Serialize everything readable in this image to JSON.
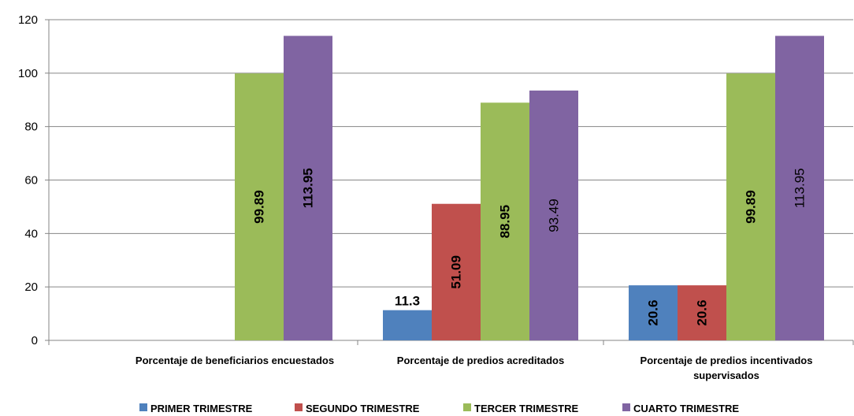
{
  "chart_data": {
    "type": "bar",
    "categories": [
      [
        "Porcentaje de beneficiarios encuestados"
      ],
      [
        "Porcentaje de predios acreditados"
      ],
      [
        "Porcentaje de predios incentivados",
        "supervisados"
      ]
    ],
    "ylim": [
      0,
      120
    ],
    "yticks": [
      0,
      20,
      40,
      60,
      80,
      100,
      120
    ],
    "grid": true,
    "legend_position": "bottom",
    "series": [
      {
        "name": "PRIMER TRIMESTRE",
        "color": "#4F81BD",
        "values": [
          null,
          11.3,
          20.6
        ],
        "labels": [
          "",
          "11.3",
          "20.6"
        ],
        "label_style": [
          "",
          "horizontal-bold",
          "vertical-bold"
        ]
      },
      {
        "name": "SEGUNDO TRIMESTRE",
        "color": "#C0504D",
        "values": [
          null,
          51.09,
          20.6
        ],
        "labels": [
          "",
          "51.09",
          "20.6"
        ],
        "label_style": [
          "",
          "vertical-bold",
          "vertical-bold"
        ]
      },
      {
        "name": "TERCER TRIMESTRE",
        "color": "#9BBB59",
        "values": [
          99.89,
          88.95,
          99.89
        ],
        "labels": [
          "99.89",
          "88.95",
          "99.89"
        ],
        "label_style": [
          "vertical-bold",
          "vertical-bold",
          "vertical-bold"
        ]
      },
      {
        "name": "CUARTO TRIMESTRE",
        "color": "#8064A2",
        "values": [
          113.95,
          93.49,
          113.95
        ],
        "labels": [
          "113.95",
          "93.49",
          "113.95"
        ],
        "label_style": [
          "vertical-bold",
          "vertical",
          "vertical"
        ]
      }
    ]
  }
}
